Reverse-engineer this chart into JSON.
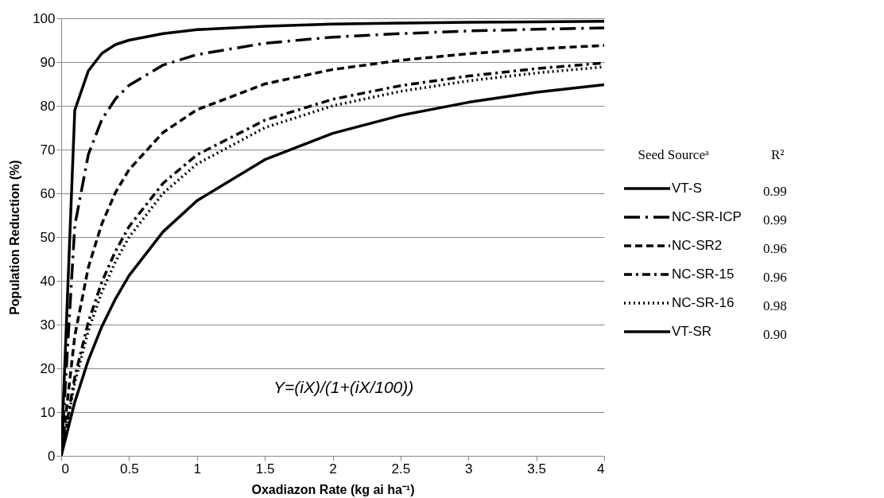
{
  "chart_data": {
    "type": "line",
    "xlabel": "Oxadiazon Rate (kg ai ha⁻¹)",
    "ylabel": "Population Reduction (%)",
    "legend_title": "Seed Sourceᵃ",
    "x": [
      0,
      0.1,
      0.2,
      0.3,
      0.4,
      0.5,
      0.75,
      1,
      1.5,
      2,
      2.5,
      3,
      3.5,
      4
    ],
    "series": [
      {
        "name": "VT-S",
        "color": "#000000",
        "line_style": "solid",
        "values": [
          0,
          79,
          88,
          92,
          94,
          95,
          96.5,
          97.4,
          98.2,
          98.7,
          98.9,
          99.1,
          99.2,
          99.3
        ]
      },
      {
        "name": "NC-SR-ICP",
        "color": "#000000",
        "line_style": "longdashdot",
        "values": [
          0,
          52.6,
          68.9,
          76.9,
          81.6,
          84.7,
          89.3,
          91.7,
          94.3,
          95.7,
          96.5,
          97.1,
          97.5,
          97.8
        ]
      },
      {
        "name": "NC-SR2",
        "color": "#000000",
        "line_style": "dashed",
        "values": [
          0,
          27.4,
          43.1,
          53.1,
          60.2,
          65.4,
          73.9,
          79.1,
          85,
          88.3,
          90.4,
          91.9,
          93,
          93.8
        ]
      },
      {
        "name": "NC-SR-15",
        "color": "#000000",
        "line_style": "dashdot",
        "values": [
          0,
          18,
          30.6,
          39.8,
          46.8,
          52.4,
          62.3,
          68.8,
          76.7,
          81.5,
          84.6,
          86.8,
          88.5,
          89.8
        ]
      },
      {
        "name": "NC-SR-16",
        "color": "#000000",
        "line_style": "dotted",
        "values": [
          0,
          16.7,
          28.6,
          37.5,
          44.4,
          50,
          60,
          66.7,
          75,
          80,
          83.3,
          85.7,
          87.5,
          88.9
        ]
      },
      {
        "name": "VT-SR",
        "color": "#000000",
        "line_style": "solid",
        "values": [
          0,
          12.3,
          21.9,
          29.6,
          35.9,
          41.2,
          51.2,
          58.3,
          67.7,
          73.7,
          77.8,
          80.8,
          83.1,
          84.8
        ]
      }
    ],
    "annotations": [
      "R²",
      "0.99",
      "0.99",
      "0.96",
      "0.96",
      "0.98",
      "0.90",
      "Y=(iX)/(1+(iX/100))"
    ],
    "xlim": [
      0,
      4
    ],
    "xticks": [
      0,
      0.5,
      1,
      1.5,
      2,
      2.5,
      3,
      3.5,
      4
    ],
    "ylim": [
      0,
      100
    ],
    "yticks": [
      0,
      10,
      20,
      30,
      40,
      50,
      60,
      70,
      80,
      90,
      100
    ],
    "grid": "y",
    "legend": "right"
  }
}
